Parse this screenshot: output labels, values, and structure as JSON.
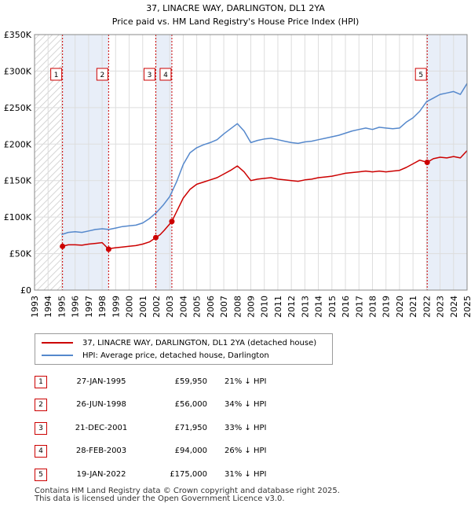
{
  "title": "37, LINACRE WAY, DARLINGTON, DL1 2YA",
  "subtitle": "Price paid vs. HM Land Registry's House Price Index (HPI)",
  "legend": {
    "property": "37, LINACRE WAY, DARLINGTON, DL1 2YA (detached house)",
    "hpi": "HPI: Average price, detached house, Darlington"
  },
  "colors": {
    "property": "#cc0000",
    "hpi": "#5588cc",
    "shade": "#e8eef8"
  },
  "sales": [
    {
      "num": "1",
      "date": "27-JAN-1995",
      "price": "£59,950",
      "hpi": "21% ↓ HPI"
    },
    {
      "num": "2",
      "date": "26-JUN-1998",
      "price": "£56,000",
      "hpi": "34% ↓ HPI"
    },
    {
      "num": "3",
      "date": "21-DEC-2001",
      "price": "£71,950",
      "hpi": "33% ↓ HPI"
    },
    {
      "num": "4",
      "date": "28-FEB-2003",
      "price": "£94,000",
      "hpi": "26% ↓ HPI"
    },
    {
      "num": "5",
      "date": "19-JAN-2022",
      "price": "£175,000",
      "hpi": "31% ↓ HPI"
    }
  ],
  "footer": {
    "line1": "Contains HM Land Registry data © Crown copyright and database right 2025.",
    "line2": "This data is licensed under the Open Government Licence v3.0."
  },
  "chart_data": {
    "type": "line",
    "title": "37, LINACRE WAY, DARLINGTON, DL1 2YA",
    "subtitle": "Price paid vs. HM Land Registry's House Price Index (HPI)",
    "xlim": [
      1993,
      2025
    ],
    "ylim": [
      0,
      350000
    ],
    "x_ticks": [
      1993,
      1994,
      1995,
      1996,
      1997,
      1998,
      1999,
      2000,
      2001,
      2002,
      2003,
      2004,
      2005,
      2006,
      2007,
      2008,
      2009,
      2010,
      2011,
      2012,
      2013,
      2014,
      2015,
      2016,
      2017,
      2018,
      2019,
      2020,
      2021,
      2022,
      2023,
      2024,
      2025
    ],
    "y_ticks": [
      {
        "value": 0,
        "label": "£0"
      },
      {
        "value": 50000,
        "label": "£50K"
      },
      {
        "value": 100000,
        "label": "£100K"
      },
      {
        "value": 150000,
        "label": "£150K"
      },
      {
        "value": 200000,
        "label": "£200K"
      },
      {
        "value": 250000,
        "label": "£250K"
      },
      {
        "value": 300000,
        "label": "£300K"
      },
      {
        "value": 350000,
        "label": "£350K"
      }
    ],
    "grid": true,
    "hatched_before": 1995.07,
    "series": [
      {
        "name": "HPI: Average price, detached house, Darlington",
        "color": "#5588cc",
        "x": [
          1995.0,
          1995.5,
          1996.0,
          1996.5,
          1997.0,
          1997.5,
          1998.0,
          1998.5,
          1999.0,
          1999.5,
          2000.0,
          2000.5,
          2001.0,
          2001.5,
          2002.0,
          2002.5,
          2003.0,
          2003.5,
          2004.0,
          2004.5,
          2005.0,
          2005.5,
          2006.0,
          2006.5,
          2007.0,
          2007.5,
          2008.0,
          2008.5,
          2009.0,
          2009.5,
          2010.0,
          2010.5,
          2011.0,
          2011.5,
          2012.0,
          2012.5,
          2013.0,
          2013.5,
          2014.0,
          2014.5,
          2015.0,
          2015.5,
          2016.0,
          2016.5,
          2017.0,
          2017.5,
          2018.0,
          2018.5,
          2019.0,
          2019.5,
          2020.0,
          2020.5,
          2021.0,
          2021.5,
          2022.0,
          2022.5,
          2023.0,
          2023.5,
          2024.0,
          2024.5,
          2025.0
        ],
        "y": [
          76000,
          79000,
          80000,
          79000,
          81000,
          83000,
          84000,
          83000,
          85000,
          87000,
          88000,
          89000,
          92000,
          98000,
          106000,
          116000,
          128000,
          148000,
          172000,
          188000,
          195000,
          199000,
          202000,
          206000,
          214000,
          221000,
          228000,
          218000,
          202000,
          205000,
          207000,
          208000,
          206000,
          204000,
          202000,
          201000,
          203000,
          204000,
          206000,
          208000,
          210000,
          212000,
          215000,
          218000,
          220000,
          222000,
          220000,
          223000,
          222000,
          221000,
          222000,
          230000,
          236000,
          245000,
          258000,
          263000,
          268000,
          270000,
          272000,
          268000,
          283000
        ]
      },
      {
        "name": "37, LINACRE WAY, DARLINGTON, DL1 2YA (detached house)",
        "color": "#cc0000",
        "x": [
          1995.07,
          1995.5,
          1996.0,
          1996.5,
          1997.0,
          1997.5,
          1998.0,
          1998.48,
          1998.6,
          1999.0,
          1999.5,
          2000.0,
          2000.5,
          2001.0,
          2001.5,
          2001.97,
          2002.3,
          2002.6,
          2003.16,
          2003.5,
          2004.0,
          2004.5,
          2005.0,
          2005.5,
          2006.0,
          2006.5,
          2007.0,
          2007.5,
          2008.0,
          2008.5,
          2009.0,
          2009.5,
          2010.0,
          2010.5,
          2011.0,
          2011.5,
          2012.0,
          2012.5,
          2013.0,
          2013.5,
          2014.0,
          2014.5,
          2015.0,
          2015.5,
          2016.0,
          2016.5,
          2017.0,
          2017.5,
          2018.0,
          2018.5,
          2019.0,
          2019.5,
          2020.0,
          2020.5,
          2021.0,
          2021.5,
          2022.05,
          2022.5,
          2023.0,
          2023.5,
          2024.0,
          2024.5,
          2025.0
        ],
        "y": [
          59950,
          62000,
          62000,
          61500,
          63000,
          64000,
          65000,
          56000,
          57000,
          58000,
          59000,
          60000,
          61000,
          63000,
          66000,
          71950,
          76000,
          82000,
          94000,
          107000,
          126000,
          138000,
          145000,
          148000,
          151000,
          154000,
          159000,
          164000,
          170000,
          162000,
          150000,
          152000,
          153000,
          154000,
          152000,
          151000,
          150000,
          149000,
          151000,
          152000,
          154000,
          155000,
          156000,
          158000,
          160000,
          161000,
          162000,
          163000,
          162000,
          163000,
          162000,
          163000,
          164000,
          168000,
          173000,
          178000,
          175000,
          180000,
          182000,
          181000,
          183000,
          181000,
          191000
        ]
      }
    ],
    "markers": [
      {
        "label": "1",
        "x": 1995.07,
        "y": 59950
      },
      {
        "label": "2",
        "x": 1998.48,
        "y": 56000
      },
      {
        "label": "3",
        "x": 2001.97,
        "y": 71950
      },
      {
        "label": "4",
        "x": 2003.16,
        "y": 94000
      },
      {
        "label": "5",
        "x": 2022.05,
        "y": 175000
      }
    ]
  }
}
